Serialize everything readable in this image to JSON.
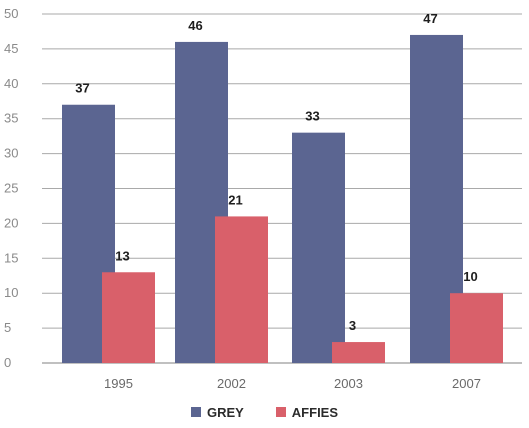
{
  "chart_data": {
    "type": "bar",
    "categories": [
      "1995",
      "2002",
      "2003",
      "2007"
    ],
    "series": [
      {
        "name": "GREY",
        "values": [
          37,
          46,
          33,
          47
        ],
        "color": "#5b6591"
      },
      {
        "name": "AFFIES",
        "values": [
          13,
          21,
          3,
          10
        ],
        "color": "#d9606a"
      }
    ],
    "ylim": [
      0,
      50
    ],
    "yticks": [
      0,
      5,
      10,
      15,
      20,
      25,
      30,
      35,
      40,
      45,
      50
    ],
    "grid": true,
    "legend_position": "bottom-center",
    "title": "",
    "xlabel": "",
    "ylabel": ""
  }
}
